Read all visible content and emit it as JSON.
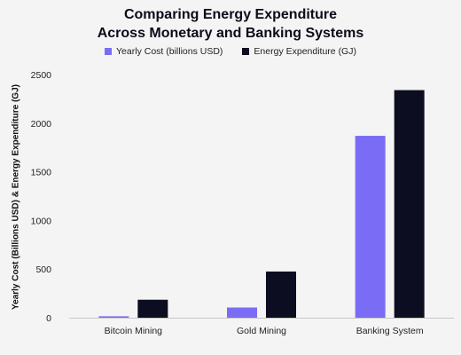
{
  "chart_data": {
    "type": "bar",
    "title_line1": "Comparing Energy Expenditure",
    "title_line2": "Across Monetary and Banking Systems",
    "xlabel": "",
    "ylabel": "Yearly Cost (Billions USD) & Energy Expenditure (GJ)",
    "categories": [
      "Bitcoin Mining",
      "Gold Mining",
      "Banking System"
    ],
    "series": [
      {
        "name": "Yearly Cost (billions USD)",
        "color": "#7b6cf6",
        "values": [
          15,
          105,
          1870
        ]
      },
      {
        "name": "Energy Expenditure (GJ)",
        "color": "#0d0d22",
        "values": [
          185,
          475,
          2340
        ]
      }
    ],
    "ylim": [
      0,
      2500
    ],
    "yticks": [
      0,
      500,
      1000,
      1500,
      2000,
      2500
    ],
    "grid": false,
    "legend_position": "top-center"
  }
}
